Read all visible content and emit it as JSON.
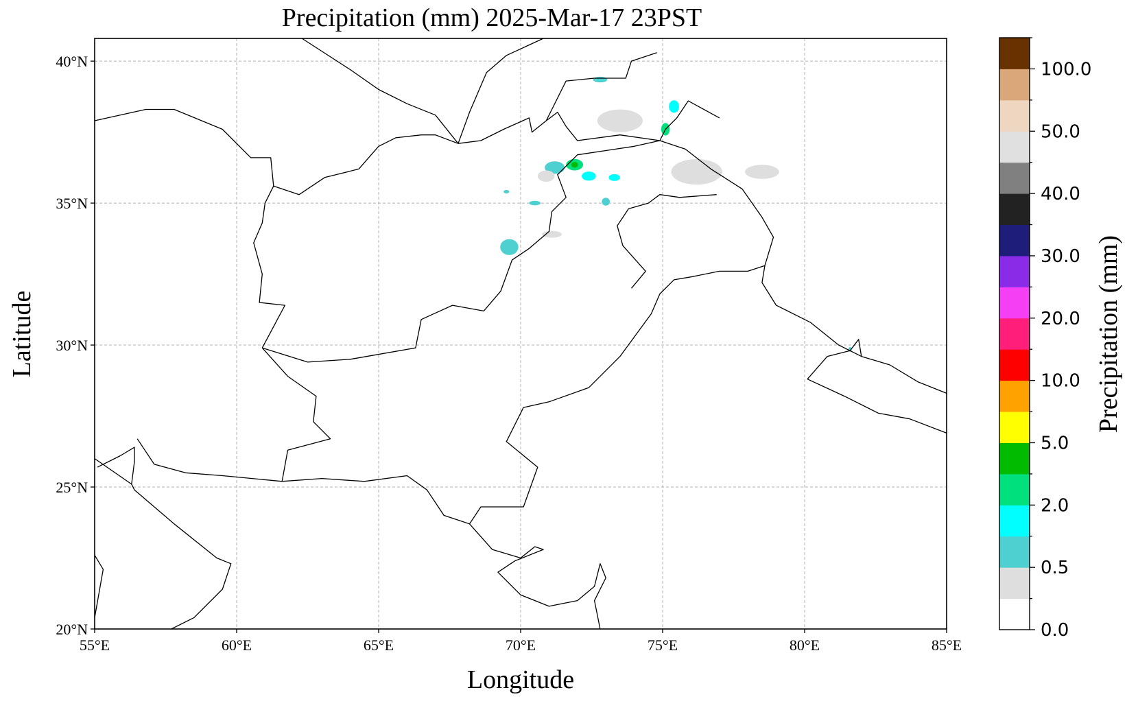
{
  "title": "Precipitation (mm)  2025-Mar-17 23PST",
  "xlabel": "Longitude",
  "ylabel": "Latitude",
  "lon_ticks": [
    {
      "value": 55,
      "label": "55°E"
    },
    {
      "value": 60,
      "label": "60°E"
    },
    {
      "value": 65,
      "label": "65°E"
    },
    {
      "value": 70,
      "label": "70°E"
    },
    {
      "value": 75,
      "label": "75°E"
    },
    {
      "value": 80,
      "label": "80°E"
    },
    {
      "value": 85,
      "label": "85°E"
    }
  ],
  "lat_ticks": [
    {
      "value": 20,
      "label": "20°N"
    },
    {
      "value": 25,
      "label": "25°N"
    },
    {
      "value": 30,
      "label": "30°N"
    },
    {
      "value": 35,
      "label": "35°N"
    },
    {
      "value": 40,
      "label": "40°N"
    }
  ],
  "extent": {
    "lon": [
      55,
      85
    ],
    "lat": [
      20,
      40.8
    ]
  },
  "colorbar": {
    "label": "Precipitation (mm)",
    "colors": [
      "#ffffff",
      "#dedede",
      "#4fd0d0",
      "#00ffff",
      "#00e07c",
      "#00bb00",
      "#ffff00",
      "#ffa200",
      "#ff0000",
      "#ff1f7a",
      "#f43ff4",
      "#8a2be8",
      "#1e1e7a",
      "#222222",
      "#808080",
      "#e0e0e0",
      "#efd6c0",
      "#d9a779",
      "#673200"
    ],
    "tick_labels": [
      "0.0",
      "0.5",
      "2.0",
      "5.0",
      "10.0",
      "20.0",
      "30.0",
      "40.0",
      "50.0",
      "100.0"
    ]
  },
  "precip_patches": [
    {
      "lon": 69.6,
      "lat": 33.45,
      "rlon": 0.32,
      "rlat": 0.28,
      "level": 2
    },
    {
      "lon": 71.2,
      "lat": 36.25,
      "rlon": 0.35,
      "rlat": 0.22,
      "level": 2
    },
    {
      "lon": 71.9,
      "lat": 36.35,
      "rlon": 0.3,
      "rlat": 0.2,
      "level": 4
    },
    {
      "lon": 71.9,
      "lat": 36.35,
      "rlon": 0.12,
      "rlat": 0.1,
      "level": 5
    },
    {
      "lon": 72.4,
      "lat": 35.95,
      "rlon": 0.25,
      "rlat": 0.16,
      "level": 3
    },
    {
      "lon": 73.3,
      "lat": 35.9,
      "rlon": 0.2,
      "rlat": 0.12,
      "level": 3
    },
    {
      "lon": 73.0,
      "lat": 35.05,
      "rlon": 0.14,
      "rlat": 0.14,
      "level": 2
    },
    {
      "lon": 75.4,
      "lat": 38.4,
      "rlon": 0.18,
      "rlat": 0.22,
      "level": 3
    },
    {
      "lon": 75.1,
      "lat": 37.6,
      "rlon": 0.15,
      "rlat": 0.22,
      "level": 4
    },
    {
      "lon": 72.8,
      "lat": 39.35,
      "rlon": 0.25,
      "rlat": 0.1,
      "level": 2
    },
    {
      "lon": 70.5,
      "lat": 35.0,
      "rlon": 0.2,
      "rlat": 0.08,
      "level": 2
    },
    {
      "lon": 71.1,
      "lat": 33.9,
      "rlon": 0.35,
      "rlat": 0.12,
      "level": 1
    },
    {
      "lon": 70.9,
      "lat": 35.95,
      "rlon": 0.3,
      "rlat": 0.2,
      "level": 1
    },
    {
      "lon": 76.2,
      "lat": 36.1,
      "rlon": 0.9,
      "rlat": 0.45,
      "level": 1
    },
    {
      "lon": 73.5,
      "lat": 37.9,
      "rlon": 0.8,
      "rlat": 0.4,
      "level": 1
    },
    {
      "lon": 78.5,
      "lat": 36.1,
      "rlon": 0.6,
      "rlat": 0.25,
      "level": 1
    },
    {
      "lon": 81.6,
      "lat": 29.85,
      "rlon": 0.06,
      "rlat": 0.08,
      "level": 2
    },
    {
      "lon": 69.5,
      "lat": 35.4,
      "rlon": 0.1,
      "rlat": 0.06,
      "level": 2
    }
  ],
  "geo_lines": [
    [
      [
        55,
        37.9
      ],
      [
        56.8,
        38.3
      ],
      [
        57.8,
        38.3
      ],
      [
        59.5,
        37.6
      ],
      [
        60.5,
        36.6
      ],
      [
        61.2,
        36.6
      ],
      [
        61.3,
        35.6
      ],
      [
        61.0,
        35.0
      ],
      [
        60.9,
        34.3
      ],
      [
        60.6,
        33.6
      ],
      [
        60.9,
        32.5
      ],
      [
        60.8,
        31.5
      ],
      [
        61.7,
        31.4
      ],
      [
        60.9,
        29.9
      ]
    ],
    [
      [
        60.9,
        29.9
      ],
      [
        62.5,
        29.4
      ],
      [
        64.0,
        29.5
      ],
      [
        66.3,
        29.9
      ],
      [
        66.5,
        30.9
      ],
      [
        67.6,
        31.4
      ],
      [
        68.7,
        31.2
      ],
      [
        69.3,
        31.9
      ],
      [
        69.7,
        33.0
      ],
      [
        70.3,
        33.4
      ],
      [
        71.0,
        34.0
      ],
      [
        71.1,
        34.7
      ],
      [
        71.6,
        35.2
      ],
      [
        71.3,
        36.0
      ],
      [
        72.0,
        36.7
      ],
      [
        74.0,
        37.0
      ],
      [
        74.9,
        37.2
      ]
    ],
    [
      [
        60.9,
        29.9
      ],
      [
        61.8,
        28.9
      ],
      [
        62.8,
        28.2
      ],
      [
        62.7,
        27.3
      ],
      [
        63.3,
        26.7
      ],
      [
        61.8,
        26.3
      ],
      [
        61.6,
        25.2
      ]
    ],
    [
      [
        61.6,
        25.2
      ],
      [
        63.0,
        25.3
      ],
      [
        64.5,
        25.2
      ],
      [
        66.0,
        25.4
      ],
      [
        66.7,
        24.9
      ],
      [
        67.3,
        24.0
      ],
      [
        68.2,
        23.7
      ]
    ],
    [
      [
        68.2,
        23.7
      ],
      [
        68.6,
        24.3
      ],
      [
        70.1,
        24.3
      ],
      [
        70.6,
        25.7
      ],
      [
        69.5,
        26.6
      ],
      [
        70.1,
        27.8
      ],
      [
        71.0,
        28.0
      ],
      [
        72.4,
        28.5
      ],
      [
        73.5,
        29.6
      ],
      [
        74.6,
        31.1
      ],
      [
        74.9,
        31.8
      ],
      [
        75.4,
        32.3
      ],
      [
        76.0,
        32.4
      ],
      [
        77.0,
        32.6
      ],
      [
        78.0,
        32.6
      ],
      [
        78.6,
        32.8
      ]
    ],
    [
      [
        68.2,
        23.7
      ],
      [
        69.0,
        22.8
      ],
      [
        70.0,
        22.5
      ],
      [
        70.5,
        22.9
      ],
      [
        70.8,
        22.8
      ],
      [
        69.8,
        22.4
      ],
      [
        69.2,
        22.0
      ],
      [
        70.0,
        21.2
      ],
      [
        71.0,
        20.8
      ],
      [
        72.0,
        21.0
      ],
      [
        72.6,
        21.5
      ],
      [
        72.8,
        22.3
      ],
      [
        73.0,
        21.8
      ],
      [
        72.6,
        21.0
      ],
      [
        72.8,
        20.0
      ]
    ],
    [
      [
        74.9,
        37.2
      ],
      [
        75.1,
        37.6
      ],
      [
        75.5,
        38.0
      ],
      [
        75.9,
        38.6
      ],
      [
        77.0,
        38.0
      ]
    ],
    [
      [
        74.9,
        37.2
      ],
      [
        75.8,
        36.9
      ],
      [
        76.7,
        36.2
      ],
      [
        77.8,
        35.5
      ],
      [
        78.5,
        34.5
      ],
      [
        78.9,
        33.8
      ],
      [
        78.6,
        32.8
      ],
      [
        78.5,
        32.2
      ],
      [
        79.0,
        31.4
      ],
      [
        80.2,
        30.8
      ],
      [
        81.2,
        30.0
      ],
      [
        82.0,
        29.6
      ],
      [
        83.0,
        29.3
      ],
      [
        84.0,
        28.7
      ],
      [
        85.0,
        28.3
      ]
    ],
    [
      [
        80.1,
        28.8
      ],
      [
        81.4,
        28.2
      ],
      [
        82.6,
        27.6
      ],
      [
        83.7,
        27.4
      ],
      [
        85.0,
        26.9
      ]
    ],
    [
      [
        80.1,
        28.8
      ],
      [
        80.8,
        29.6
      ],
      [
        81.6,
        29.8
      ],
      [
        81.9,
        30.2
      ],
      [
        82.0,
        29.6
      ]
    ],
    [
      [
        74.9,
        37.2
      ],
      [
        73.5,
        37.4
      ],
      [
        72.0,
        37.2
      ],
      [
        71.6,
        37.7
      ],
      [
        71.3,
        38.2
      ],
      [
        70.9,
        37.9
      ],
      [
        70.4,
        37.5
      ],
      [
        70.3,
        38.0
      ],
      [
        69.4,
        37.6
      ],
      [
        68.6,
        37.2
      ],
      [
        67.8,
        37.1
      ],
      [
        67.0,
        37.4
      ],
      [
        66.5,
        37.4
      ],
      [
        65.6,
        37.3
      ],
      [
        65.0,
        37.0
      ],
      [
        64.3,
        36.2
      ],
      [
        63.1,
        35.9
      ],
      [
        62.2,
        35.3
      ],
      [
        61.3,
        35.6
      ]
    ],
    [
      [
        67.8,
        37.1
      ],
      [
        67.0,
        38.1
      ],
      [
        66.0,
        38.5
      ],
      [
        65.0,
        39.0
      ],
      [
        64.0,
        39.7
      ],
      [
        62.3,
        40.8
      ]
    ],
    [
      [
        70.9,
        37.9
      ],
      [
        71.6,
        39.3
      ],
      [
        72.6,
        39.4
      ],
      [
        73.7,
        39.4
      ],
      [
        73.9,
        40.0
      ],
      [
        74.8,
        40.3
      ]
    ],
    [
      [
        70.8,
        40.8
      ],
      [
        69.5,
        40.2
      ],
      [
        68.8,
        39.6
      ],
      [
        68.5,
        38.9
      ],
      [
        68.2,
        38.2
      ],
      [
        67.8,
        37.1
      ]
    ],
    [
      [
        55.1,
        25.7
      ],
      [
        55.9,
        26.1
      ],
      [
        56.4,
        26.4
      ],
      [
        56.4,
        25.9
      ],
      [
        56.3,
        25.1
      ],
      [
        56.4,
        24.9
      ],
      [
        57.8,
        23.7
      ],
      [
        59.3,
        22.5
      ],
      [
        59.8,
        22.3
      ],
      [
        59.5,
        21.4
      ],
      [
        58.5,
        20.4
      ],
      [
        57.7,
        20.0
      ]
    ],
    [
      [
        55,
        22.6
      ],
      [
        55.3,
        22.1
      ],
      [
        55,
        20.4
      ]
    ],
    [
      [
        55,
        26.0
      ],
      [
        56.3,
        25.1
      ]
    ],
    [
      [
        56.5,
        26.7
      ],
      [
        57.1,
        25.8
      ],
      [
        58.2,
        25.5
      ],
      [
        59.5,
        25.4
      ],
      [
        61.6,
        25.2
      ]
    ],
    [
      [
        73.9,
        32.0
      ],
      [
        74.4,
        32.6
      ],
      [
        73.6,
        33.5
      ],
      [
        73.4,
        34.2
      ],
      [
        73.8,
        34.8
      ],
      [
        74.5,
        35.0
      ],
      [
        74.9,
        35.3
      ],
      [
        75.6,
        35.2
      ],
      [
        76.9,
        35.3
      ]
    ]
  ]
}
